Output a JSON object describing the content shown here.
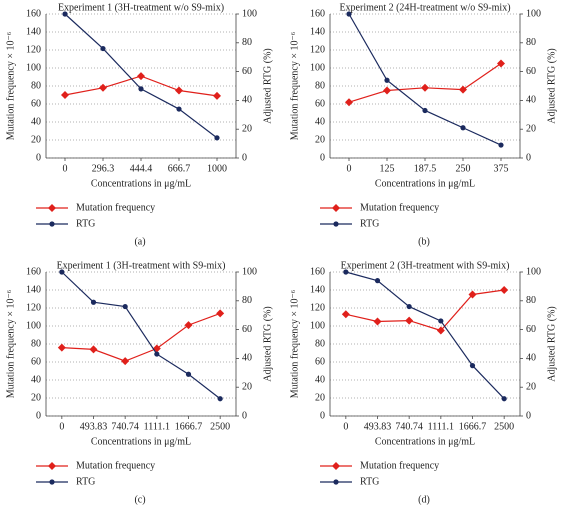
{
  "chart_data": [
    {
      "type": "line",
      "title": "Experiment 1 (3H-treatment w/o S9-mix)",
      "panel_label": "(a)",
      "x_label": "Concentrations in μg/mL",
      "y_label": "Mutation frequency × 10⁻⁶",
      "y2_label": "Adjusted RTG (%)",
      "categories": [
        "0",
        "296.3",
        "444.4",
        "666.7",
        "1000"
      ],
      "series": [
        {
          "name": "Mutation frequency",
          "color": "#e0201b",
          "marker": "diamond",
          "values": [
            70,
            78,
            91,
            75,
            69
          ]
        },
        {
          "name": "RTG",
          "color": "#1b2a5e",
          "marker": "circle",
          "axis": "y2",
          "values": [
            100,
            76,
            48,
            34,
            14
          ]
        }
      ],
      "ylim": [
        0,
        160
      ],
      "yticks": [
        0,
        20,
        40,
        60,
        80,
        100,
        120,
        140,
        160
      ],
      "y2lim": [
        0,
        100
      ],
      "y2ticks": [
        0,
        20,
        40,
        60,
        80,
        100
      ],
      "grid": true
    },
    {
      "type": "line",
      "title": "Experiment 2 (24H-treatment w/o S9-mix)",
      "panel_label": "(b)",
      "x_label": "Concentrations in μg/mL",
      "y_label": "Mutation frequency × 10⁻⁶",
      "y2_label": "Adjusted RTG (%)",
      "categories": [
        "0",
        "125",
        "187.5",
        "250",
        "375"
      ],
      "series": [
        {
          "name": "Mutation frequency",
          "color": "#e0201b",
          "marker": "diamond",
          "values": [
            62,
            75,
            78,
            76,
            105
          ]
        },
        {
          "name": "RTG",
          "color": "#1b2a5e",
          "marker": "circle",
          "axis": "y2",
          "values": [
            100,
            54,
            33,
            21,
            9
          ]
        }
      ],
      "ylim": [
        0,
        160
      ],
      "yticks": [
        0,
        20,
        40,
        60,
        80,
        100,
        120,
        140,
        160
      ],
      "y2lim": [
        0,
        100
      ],
      "y2ticks": [
        0,
        20,
        40,
        60,
        80,
        100
      ],
      "grid": true
    },
    {
      "type": "line",
      "title": "Experiment 1 (3H-treatment with S9-mix)",
      "panel_label": "(c)",
      "x_label": "Concentrations in μg/mL",
      "y_label": "Mutation frequency × 10⁻⁶",
      "y2_label": "Adjusted RTG (%)",
      "categories": [
        "0",
        "493.83",
        "740.74",
        "1111.1",
        "1666.7",
        "2500"
      ],
      "series": [
        {
          "name": "Mutation frequency",
          "color": "#e0201b",
          "marker": "diamond",
          "values": [
            76,
            74,
            61,
            75,
            101,
            114
          ]
        },
        {
          "name": "RTG",
          "color": "#1b2a5e",
          "marker": "circle",
          "axis": "y2",
          "values": [
            100,
            79,
            76,
            43,
            29,
            12
          ]
        }
      ],
      "ylim": [
        0,
        160
      ],
      "yticks": [
        0,
        20,
        40,
        60,
        80,
        100,
        120,
        140,
        160
      ],
      "y2lim": [
        0,
        100
      ],
      "y2ticks": [
        0,
        20,
        40,
        60,
        80,
        100
      ],
      "grid": true
    },
    {
      "type": "line",
      "title": "Experiment 2 (3H-treatment with S9-mix)",
      "panel_label": "(d)",
      "x_label": "Concentrations in μg/mL",
      "y_label": "Mutation frequency × 10⁻⁶",
      "y2_label": "Adjusted RTG (%)",
      "categories": [
        "0",
        "493.83",
        "740.74",
        "1111.1",
        "1666.7",
        "2500"
      ],
      "series": [
        {
          "name": "Mutation frequency",
          "color": "#e0201b",
          "marker": "diamond",
          "values": [
            113,
            105,
            106,
            95,
            135,
            140
          ]
        },
        {
          "name": "RTG",
          "color": "#1b2a5e",
          "marker": "circle",
          "axis": "y2",
          "values": [
            100,
            94,
            76,
            66,
            35,
            12
          ]
        }
      ],
      "ylim": [
        0,
        160
      ],
      "yticks": [
        0,
        20,
        40,
        60,
        80,
        100,
        120,
        140,
        160
      ],
      "y2lim": [
        0,
        100
      ],
      "y2ticks": [
        0,
        20,
        40,
        60,
        80,
        100
      ],
      "grid": true
    }
  ]
}
